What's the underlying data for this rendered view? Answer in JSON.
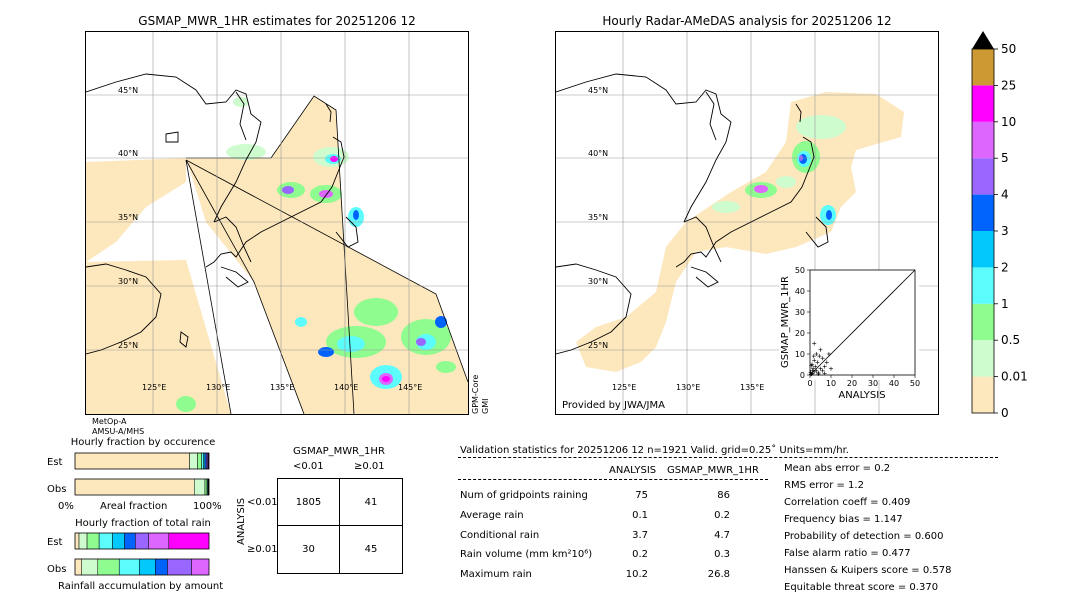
{
  "left_map": {
    "title": "GSMAP_MWR_1HR estimates for 20251206 12",
    "lat_labels": [
      "45°N",
      "40°N",
      "35°N",
      "30°N",
      "25°N"
    ],
    "lon_labels": [
      "125°E",
      "130°E",
      "135°E",
      "140°E",
      "145°E"
    ],
    "sensor_bottom": "MetOp-A\nAMSU-A/MHS",
    "sensor_right": "GPM-Core\nGMI"
  },
  "right_map": {
    "title": "Hourly Radar-AMeDAS analysis for 20251206 12",
    "lat_labels": [
      "45°N",
      "40°N",
      "35°N",
      "30°N",
      "25°N"
    ],
    "lon_labels": [
      "125°E",
      "130°E",
      "135°E"
    ],
    "credit": "Provided by JWA/JMA"
  },
  "colorbar": {
    "ticks": [
      "50",
      "25",
      "10",
      "5",
      "4",
      "3",
      "2",
      "1",
      "0.5",
      "0.01",
      "0"
    ],
    "colors": [
      "#fde7bd",
      "#cffccf",
      "#8ffc8f",
      "#5cfcfc",
      "#02c8fc",
      "#0064fc",
      "#9966ff",
      "#dd66ff",
      "#ff00ff",
      "#cc9933"
    ],
    "over_color": "#000000"
  },
  "scatter": {
    "type": "scatter",
    "xlabel": "ANALYSIS",
    "ylabel": "GSMAP_MWR_1HR",
    "xlim": [
      0,
      50
    ],
    "ylim": [
      0,
      50
    ],
    "xticks": [
      "0",
      "10",
      "20",
      "30",
      "40",
      "50"
    ],
    "yticks": [
      "0",
      "10",
      "20",
      "30",
      "40",
      "50"
    ],
    "points": [
      [
        0.5,
        0.3
      ],
      [
        1,
        0.8
      ],
      [
        2,
        1.5
      ],
      [
        0.3,
        1.2
      ],
      [
        1.5,
        3
      ],
      [
        3,
        2
      ],
      [
        2.5,
        4
      ],
      [
        4,
        1
      ],
      [
        1,
        5
      ],
      [
        5,
        3
      ],
      [
        3.5,
        6
      ],
      [
        6,
        2
      ],
      [
        2,
        7
      ],
      [
        7,
        4
      ],
      [
        4.5,
        9
      ],
      [
        8,
        6
      ],
      [
        1.2,
        2.2
      ],
      [
        0.8,
        0.5
      ],
      [
        10,
        3
      ],
      [
        3,
        10
      ],
      [
        5,
        12
      ],
      [
        2,
        15
      ],
      [
        6,
        8
      ],
      [
        9,
        10
      ],
      [
        0.6,
        4.5
      ],
      [
        4,
        0.5
      ],
      [
        7,
        0.8
      ],
      [
        1.8,
        9
      ]
    ]
  },
  "fraction_occurrence": {
    "title": "Hourly fraction by occurence",
    "rows": [
      "Est",
      "Obs"
    ],
    "axis_left": "0%",
    "axis_mid": "Areal fraction",
    "axis_right": "100%",
    "est": [
      0.855,
      0.06,
      0.03,
      0.015,
      0.01,
      0.01,
      0.01,
      0.005,
      0.005
    ],
    "obs": [
      0.89,
      0.08,
      0.015,
      0.005,
      0.004,
      0.003,
      0.002,
      0.001,
      0.0
    ]
  },
  "fraction_total": {
    "title": "Hourly fraction of total rain",
    "rows": [
      "Est",
      "Obs"
    ],
    "footer": "Rainfall accumulation by amount",
    "est": [
      0.03,
      0.06,
      0.09,
      0.1,
      0.09,
      0.08,
      0.1,
      0.15,
      0.3
    ],
    "obs": [
      0.05,
      0.12,
      0.16,
      0.15,
      0.12,
      0.09,
      0.18,
      0.13,
      0.0
    ]
  },
  "contingency": {
    "title": "GSMAP_MWR_1HR",
    "col_labels": [
      "<0.01",
      "≥0.01"
    ],
    "row_axis": "ANALYSIS",
    "row_labels": [
      "<0.01",
      "≥0.01"
    ],
    "cells": [
      [
        "1805",
        "41"
      ],
      [
        "30",
        "45"
      ]
    ]
  },
  "validation": {
    "header": "Validation statistics for 20251206 12  n=1921 Valid. grid=0.25˚ Units=mm/hr.",
    "col_analysis": "ANALYSIS",
    "col_gsmap": "GSMAP_MWR_1HR",
    "rows": [
      {
        "label": "Num of gridpoints raining",
        "analysis": "75",
        "gsmap": "86"
      },
      {
        "label": "Average rain",
        "analysis": "0.1",
        "gsmap": "0.2"
      },
      {
        "label": "Conditional rain",
        "analysis": "3.7",
        "gsmap": "4.7"
      },
      {
        "label": "Rain volume (mm km²10⁶)",
        "analysis": "0.2",
        "gsmap": "0.3"
      },
      {
        "label": "Maximum rain",
        "analysis": "10.2",
        "gsmap": "26.8"
      }
    ],
    "scores": [
      "Mean abs error =    0.2",
      "RMS error =    1.2",
      "Correlation coeff =  0.409",
      "Frequency bias =  1.147",
      "Probability of detection =  0.600",
      "False alarm ratio =  0.477",
      "Hanssen & Kuipers score =  0.578",
      "Equitable threat score =  0.370"
    ]
  }
}
